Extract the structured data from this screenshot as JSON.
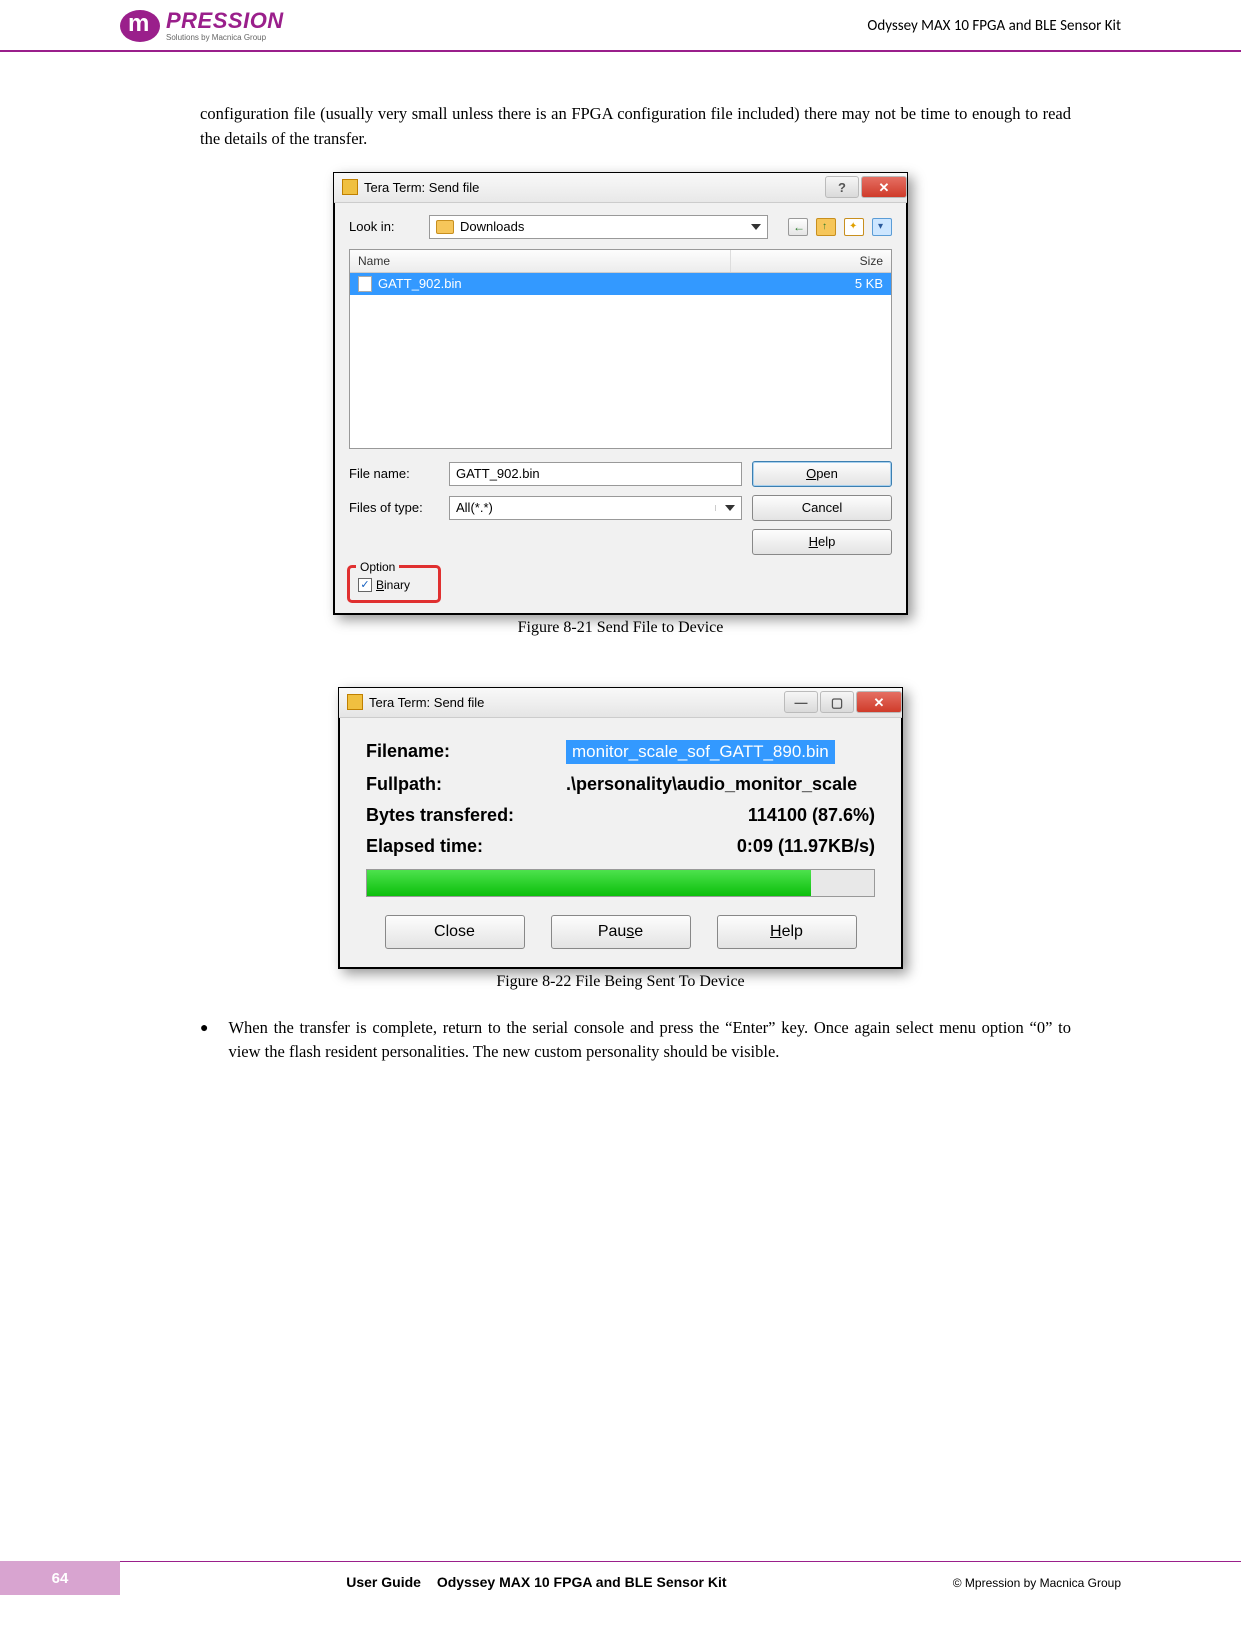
{
  "header": {
    "doc_title": "Odyssey MAX 10 FPGA and BLE Sensor Kit",
    "logo_brand": "PRESSION",
    "logo_sub": "Solutions by Macnica Group"
  },
  "para1": "configuration file (usually very small unless there is an FPGA configuration file included) there may not be time to enough to read the details of the transfer.",
  "fig1": {
    "caption": "Figure 8-21 Send File to Device",
    "title": "Tera Term: Send file",
    "lookin_label": "Look in:",
    "lookin_value": "Downloads",
    "cols": {
      "name": "Name",
      "size": "Size"
    },
    "row": {
      "name": "GATT_902.bin",
      "size": "5 KB"
    },
    "filename_label": "File name:",
    "filename_value": "GATT_902.bin",
    "filetype_label": "Files of type:",
    "filetype_value": "All(*.*)",
    "btn_open": "Open",
    "btn_cancel": "Cancel",
    "btn_help": "Help",
    "option_title": "Option",
    "option_binary": "Binary"
  },
  "fig2": {
    "caption": "Figure 8-22 File Being Sent To Device",
    "title": "Tera Term: Send file",
    "labels": {
      "filename": "Filename:",
      "fullpath": "Fullpath:",
      "bytes": "Bytes transfered:",
      "elapsed": "Elapsed time:"
    },
    "values": {
      "filename": "monitor_scale_sof_GATT_890.bin",
      "fullpath": ".\\personality\\audio_monitor_scale",
      "bytes": "114100 (87.6%)",
      "elapsed": "0:09 (11.97KB/s)"
    },
    "progress_pct": 87.6,
    "btn_close": "Close",
    "btn_pause": "Pause",
    "btn_help": "Help"
  },
  "bullet1": "When the transfer is complete, return to the serial console and press the “Enter” key.  Once again select menu option “0” to view the flash resident personalities.  The new custom personality should be visible.",
  "footer": {
    "page": "64",
    "ug": "User Guide",
    "title": "Odyssey MAX 10 FPGA and BLE Sensor Kit",
    "copyright": "© Mpression by Macnica Group"
  },
  "colors": {
    "accent": "#9a1f8b",
    "selection_blue": "#3399ff",
    "progress_green": "#0bbf0b",
    "highlight_red": "#e03030",
    "footer_pink": "#d8a4d0"
  }
}
